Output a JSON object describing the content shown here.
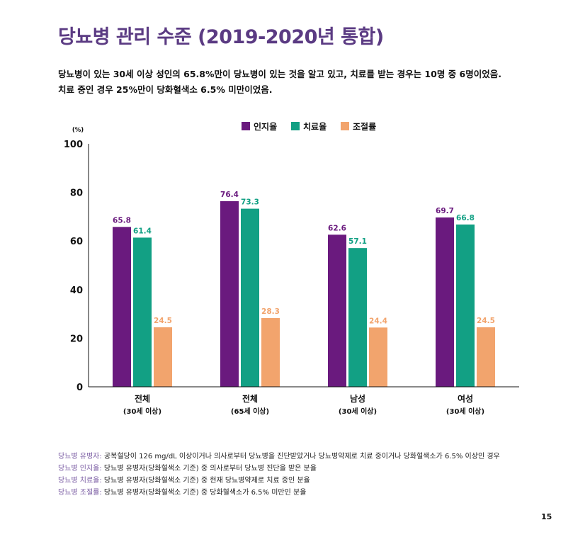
{
  "title": "당뇨병 관리 수준 (2019-2020년 통합)",
  "subtitle_lines": [
    "당뇨병이 있는 30세 이상 성인의 65.8%만이 당뇨병이 있는 것을 알고 있고, 치료를 받는 경우는 10명 중 6명이었음.",
    "치료 중인 경우 25%만이 당화혈색소 6.5% 미만이었음."
  ],
  "chart_data": {
    "type": "bar",
    "ylabel": "(%)",
    "ylim": [
      0,
      100
    ],
    "yticks": [
      0,
      20,
      40,
      60,
      80,
      100
    ],
    "legend_position": "top-center",
    "categories": [
      {
        "name": "전체",
        "sub": "(30세 이상)"
      },
      {
        "name": "전체",
        "sub": "(65세 이상)"
      },
      {
        "name": "남성",
        "sub": "(30세 이상)"
      },
      {
        "name": "여성",
        "sub": "(30세 이상)"
      }
    ],
    "series": [
      {
        "name": "인지율",
        "color": "#6a1a7e",
        "values": [
          65.8,
          76.4,
          62.6,
          69.7
        ]
      },
      {
        "name": "치료율",
        "color": "#12a084",
        "values": [
          61.4,
          73.3,
          57.1,
          66.8
        ]
      },
      {
        "name": "조절률",
        "color": "#f2a46d",
        "values": [
          24.5,
          28.3,
          24.4,
          24.5
        ]
      }
    ]
  },
  "footnotes": [
    {
      "term": "당뇨병 유병자:",
      "desc": " 공복혈당이 126 mg/dL 이상이거나 의사로부터 당뇨병을 진단받았거나 당뇨병약제로 치료 중이거나 당화혈색소가 6.5% 이상인 경우"
    },
    {
      "term": "당뇨병 인지율:",
      "desc": " 당뇨병 유병자(당화혈색소 기준) 중 의사로부터 당뇨병 진단을 받은 분율"
    },
    {
      "term": "당뇨병 치료율:",
      "desc": " 당뇨병 유병자(당화혈색소 기준) 중 현재 당뇨병약제로 치료 중인 분율"
    },
    {
      "term": "당뇨병 조절률:",
      "desc": " 당뇨병 유병자(당화혈색소 기준) 중 당화혈색소가 6.5% 미만인 분율"
    }
  ],
  "page_number": "15"
}
